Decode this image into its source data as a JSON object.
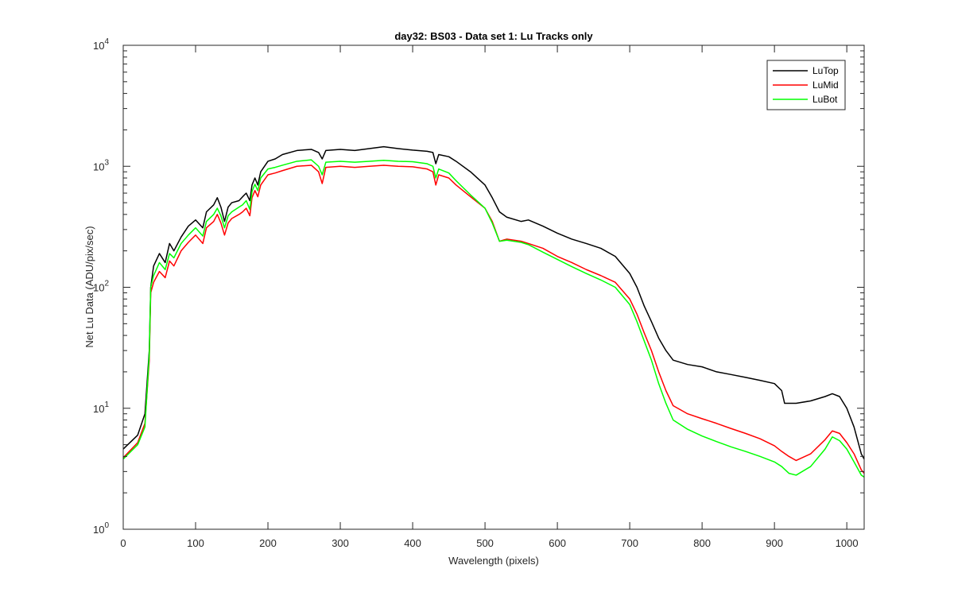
{
  "chart_data": {
    "type": "line",
    "title": "day32: BS03 - Data set 1: Lu Tracks only",
    "xlabel": "Wavelength (pixels)",
    "ylabel": "Net Lu Data (ADU/pix/sec)",
    "xlim": [
      0,
      1024
    ],
    "ylim": [
      1,
      10000
    ],
    "yscale": "log",
    "grid": false,
    "legend_position": "top-right",
    "x_ticks": [
      "0",
      "100",
      "200",
      "300",
      "400",
      "500",
      "600",
      "700",
      "800",
      "900",
      "1000"
    ],
    "y_ticks": [
      {
        "base": "10",
        "exp": "0"
      },
      {
        "base": "10",
        "exp": "1"
      },
      {
        "base": "10",
        "exp": "2"
      },
      {
        "base": "10",
        "exp": "3"
      },
      {
        "base": "10",
        "exp": "4"
      }
    ],
    "series": [
      {
        "name": "LuTop",
        "color": "#000000",
        "points": [
          [
            0,
            4.6
          ],
          [
            20,
            6
          ],
          [
            30,
            9
          ],
          [
            36,
            30
          ],
          [
            38,
            100
          ],
          [
            42,
            150
          ],
          [
            50,
            190
          ],
          [
            58,
            160
          ],
          [
            64,
            230
          ],
          [
            70,
            200
          ],
          [
            80,
            260
          ],
          [
            90,
            320
          ],
          [
            100,
            360
          ],
          [
            110,
            310
          ],
          [
            115,
            420
          ],
          [
            125,
            480
          ],
          [
            130,
            550
          ],
          [
            135,
            460
          ],
          [
            140,
            350
          ],
          [
            145,
            460
          ],
          [
            150,
            500
          ],
          [
            160,
            520
          ],
          [
            165,
            560
          ],
          [
            170,
            600
          ],
          [
            175,
            520
          ],
          [
            178,
            700
          ],
          [
            182,
            800
          ],
          [
            186,
            700
          ],
          [
            190,
            900
          ],
          [
            200,
            1100
          ],
          [
            210,
            1150
          ],
          [
            220,
            1250
          ],
          [
            240,
            1350
          ],
          [
            260,
            1380
          ],
          [
            270,
            1300
          ],
          [
            275,
            1150
          ],
          [
            280,
            1350
          ],
          [
            300,
            1380
          ],
          [
            320,
            1350
          ],
          [
            340,
            1400
          ],
          [
            360,
            1450
          ],
          [
            380,
            1400
          ],
          [
            400,
            1360
          ],
          [
            420,
            1330
          ],
          [
            428,
            1300
          ],
          [
            432,
            1050
          ],
          [
            436,
            1250
          ],
          [
            450,
            1200
          ],
          [
            460,
            1100
          ],
          [
            480,
            900
          ],
          [
            500,
            700
          ],
          [
            510,
            550
          ],
          [
            520,
            420
          ],
          [
            530,
            380
          ],
          [
            550,
            350
          ],
          [
            560,
            360
          ],
          [
            580,
            320
          ],
          [
            600,
            280
          ],
          [
            620,
            250
          ],
          [
            640,
            230
          ],
          [
            660,
            210
          ],
          [
            680,
            180
          ],
          [
            700,
            130
          ],
          [
            710,
            100
          ],
          [
            720,
            70
          ],
          [
            730,
            52
          ],
          [
            740,
            38
          ],
          [
            750,
            30
          ],
          [
            760,
            25
          ],
          [
            780,
            23
          ],
          [
            800,
            22
          ],
          [
            820,
            20
          ],
          [
            840,
            19
          ],
          [
            860,
            18
          ],
          [
            880,
            17
          ],
          [
            900,
            16
          ],
          [
            910,
            14
          ],
          [
            914,
            11
          ],
          [
            930,
            11
          ],
          [
            950,
            11.5
          ],
          [
            970,
            12.5
          ],
          [
            980,
            13.2
          ],
          [
            990,
            12.5
          ],
          [
            1000,
            10
          ],
          [
            1010,
            7
          ],
          [
            1020,
            4.2
          ],
          [
            1024,
            3.8
          ]
        ]
      },
      {
        "name": "LuMid",
        "color": "#ff0000",
        "points": [
          [
            0,
            3.9
          ],
          [
            20,
            5.2
          ],
          [
            30,
            7.5
          ],
          [
            36,
            25
          ],
          [
            38,
            90
          ],
          [
            42,
            110
          ],
          [
            50,
            135
          ],
          [
            58,
            120
          ],
          [
            64,
            165
          ],
          [
            70,
            150
          ],
          [
            80,
            200
          ],
          [
            90,
            235
          ],
          [
            100,
            270
          ],
          [
            110,
            230
          ],
          [
            115,
            310
          ],
          [
            125,
            350
          ],
          [
            130,
            400
          ],
          [
            135,
            340
          ],
          [
            140,
            270
          ],
          [
            145,
            340
          ],
          [
            150,
            370
          ],
          [
            160,
            400
          ],
          [
            165,
            420
          ],
          [
            170,
            450
          ],
          [
            175,
            390
          ],
          [
            178,
            550
          ],
          [
            182,
            630
          ],
          [
            186,
            560
          ],
          [
            190,
            700
          ],
          [
            200,
            850
          ],
          [
            210,
            880
          ],
          [
            220,
            920
          ],
          [
            240,
            1000
          ],
          [
            260,
            1020
          ],
          [
            270,
            900
          ],
          [
            275,
            720
          ],
          [
            280,
            980
          ],
          [
            300,
            1000
          ],
          [
            320,
            980
          ],
          [
            340,
            1000
          ],
          [
            360,
            1020
          ],
          [
            380,
            1000
          ],
          [
            400,
            990
          ],
          [
            420,
            950
          ],
          [
            428,
            900
          ],
          [
            432,
            700
          ],
          [
            436,
            850
          ],
          [
            450,
            800
          ],
          [
            460,
            700
          ],
          [
            480,
            560
          ],
          [
            500,
            450
          ],
          [
            510,
            350
          ],
          [
            520,
            240
          ],
          [
            530,
            250
          ],
          [
            550,
            240
          ],
          [
            560,
            230
          ],
          [
            580,
            210
          ],
          [
            600,
            180
          ],
          [
            620,
            160
          ],
          [
            640,
            140
          ],
          [
            660,
            125
          ],
          [
            680,
            110
          ],
          [
            700,
            80
          ],
          [
            710,
            60
          ],
          [
            720,
            42
          ],
          [
            730,
            30
          ],
          [
            740,
            20
          ],
          [
            750,
            14
          ],
          [
            760,
            10.5
          ],
          [
            780,
            9
          ],
          [
            800,
            8.2
          ],
          [
            820,
            7.5
          ],
          [
            840,
            6.8
          ],
          [
            860,
            6.2
          ],
          [
            880,
            5.6
          ],
          [
            900,
            4.9
          ],
          [
            910,
            4.4
          ],
          [
            920,
            4
          ],
          [
            930,
            3.7
          ],
          [
            950,
            4.2
          ],
          [
            970,
            5.5
          ],
          [
            980,
            6.5
          ],
          [
            990,
            6.2
          ],
          [
            1000,
            5.2
          ],
          [
            1010,
            4.2
          ],
          [
            1020,
            3.1
          ],
          [
            1024,
            2.9
          ]
        ]
      },
      {
        "name": "LuBot",
        "color": "#00ff00",
        "points": [
          [
            0,
            3.8
          ],
          [
            20,
            5
          ],
          [
            30,
            7
          ],
          [
            36,
            28
          ],
          [
            38,
            100
          ],
          [
            42,
            125
          ],
          [
            50,
            160
          ],
          [
            58,
            140
          ],
          [
            64,
            190
          ],
          [
            70,
            175
          ],
          [
            80,
            230
          ],
          [
            90,
            270
          ],
          [
            100,
            310
          ],
          [
            110,
            265
          ],
          [
            115,
            350
          ],
          [
            125,
            400
          ],
          [
            130,
            450
          ],
          [
            135,
            390
          ],
          [
            140,
            310
          ],
          [
            145,
            390
          ],
          [
            150,
            420
          ],
          [
            160,
            460
          ],
          [
            165,
            480
          ],
          [
            170,
            520
          ],
          [
            175,
            440
          ],
          [
            178,
            620
          ],
          [
            182,
            710
          ],
          [
            186,
            630
          ],
          [
            190,
            800
          ],
          [
            200,
            950
          ],
          [
            210,
            980
          ],
          [
            220,
            1020
          ],
          [
            240,
            1100
          ],
          [
            260,
            1130
          ],
          [
            270,
            1000
          ],
          [
            275,
            850
          ],
          [
            280,
            1080
          ],
          [
            300,
            1100
          ],
          [
            320,
            1080
          ],
          [
            340,
            1100
          ],
          [
            360,
            1120
          ],
          [
            380,
            1100
          ],
          [
            400,
            1090
          ],
          [
            420,
            1050
          ],
          [
            428,
            1000
          ],
          [
            432,
            800
          ],
          [
            436,
            950
          ],
          [
            450,
            880
          ],
          [
            460,
            760
          ],
          [
            480,
            580
          ],
          [
            500,
            450
          ],
          [
            510,
            340
          ],
          [
            520,
            240
          ],
          [
            530,
            245
          ],
          [
            550,
            235
          ],
          [
            560,
            225
          ],
          [
            580,
            195
          ],
          [
            600,
            170
          ],
          [
            620,
            148
          ],
          [
            640,
            130
          ],
          [
            660,
            115
          ],
          [
            680,
            100
          ],
          [
            700,
            72
          ],
          [
            710,
            52
          ],
          [
            720,
            36
          ],
          [
            730,
            25
          ],
          [
            740,
            16
          ],
          [
            750,
            11
          ],
          [
            760,
            8
          ],
          [
            780,
            6.7
          ],
          [
            800,
            5.9
          ],
          [
            820,
            5.3
          ],
          [
            840,
            4.8
          ],
          [
            860,
            4.4
          ],
          [
            880,
            4
          ],
          [
            900,
            3.6
          ],
          [
            910,
            3.3
          ],
          [
            920,
            2.9
          ],
          [
            930,
            2.8
          ],
          [
            950,
            3.3
          ],
          [
            970,
            4.6
          ],
          [
            980,
            5.8
          ],
          [
            990,
            5.4
          ],
          [
            1000,
            4.6
          ],
          [
            1010,
            3.6
          ],
          [
            1020,
            2.8
          ],
          [
            1024,
            2.7
          ]
        ]
      }
    ]
  }
}
